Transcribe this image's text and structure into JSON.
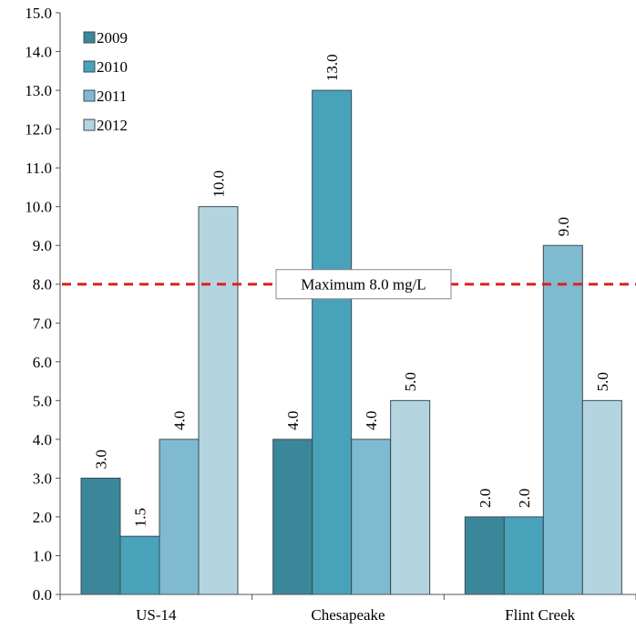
{
  "colors": {
    "series": [
      "#3a8799",
      "#48a2b9",
      "#7fbad0",
      "#b4d5e0"
    ],
    "bar_edge": "#3c4a55",
    "reference_line": "#e02020",
    "axis": "#555555",
    "background": "#ffffff"
  },
  "chart_data": {
    "type": "bar",
    "categories": [
      "US-14",
      "Chesapeake",
      "Flint Creek"
    ],
    "series": [
      {
        "name": "2009",
        "values": [
          3.0,
          4.0,
          2.0
        ]
      },
      {
        "name": "2010",
        "values": [
          1.5,
          13.0,
          2.0
        ]
      },
      {
        "name": "2011",
        "values": [
          4.0,
          4.0,
          9.0
        ]
      },
      {
        "name": "2012",
        "values": [
          10.0,
          5.0,
          5.0
        ]
      }
    ],
    "ylim": [
      0,
      15
    ],
    "ytick_labels": [
      "0.0",
      "1.0",
      "2.0",
      "3.0",
      "4.0",
      "5.0",
      "6.0",
      "7.0",
      "8.0",
      "9.0",
      "10.0",
      "11.0",
      "12.0",
      "13.0",
      "14.0",
      "15.0"
    ],
    "data_labels": [
      [
        "3.0",
        "4.0",
        "2.0"
      ],
      [
        "1.5",
        "13.0",
        "2.0"
      ],
      [
        "4.0",
        "4.0",
        "9.0"
      ],
      [
        "10.0",
        "5.0",
        "5.0"
      ]
    ],
    "reference_line": {
      "value": 8.0,
      "label": "Maximum 8.0 mg/L",
      "style": "dashed"
    },
    "title": "",
    "xlabel": "",
    "ylabel": "",
    "grid": false,
    "legend_position": "top-left"
  }
}
